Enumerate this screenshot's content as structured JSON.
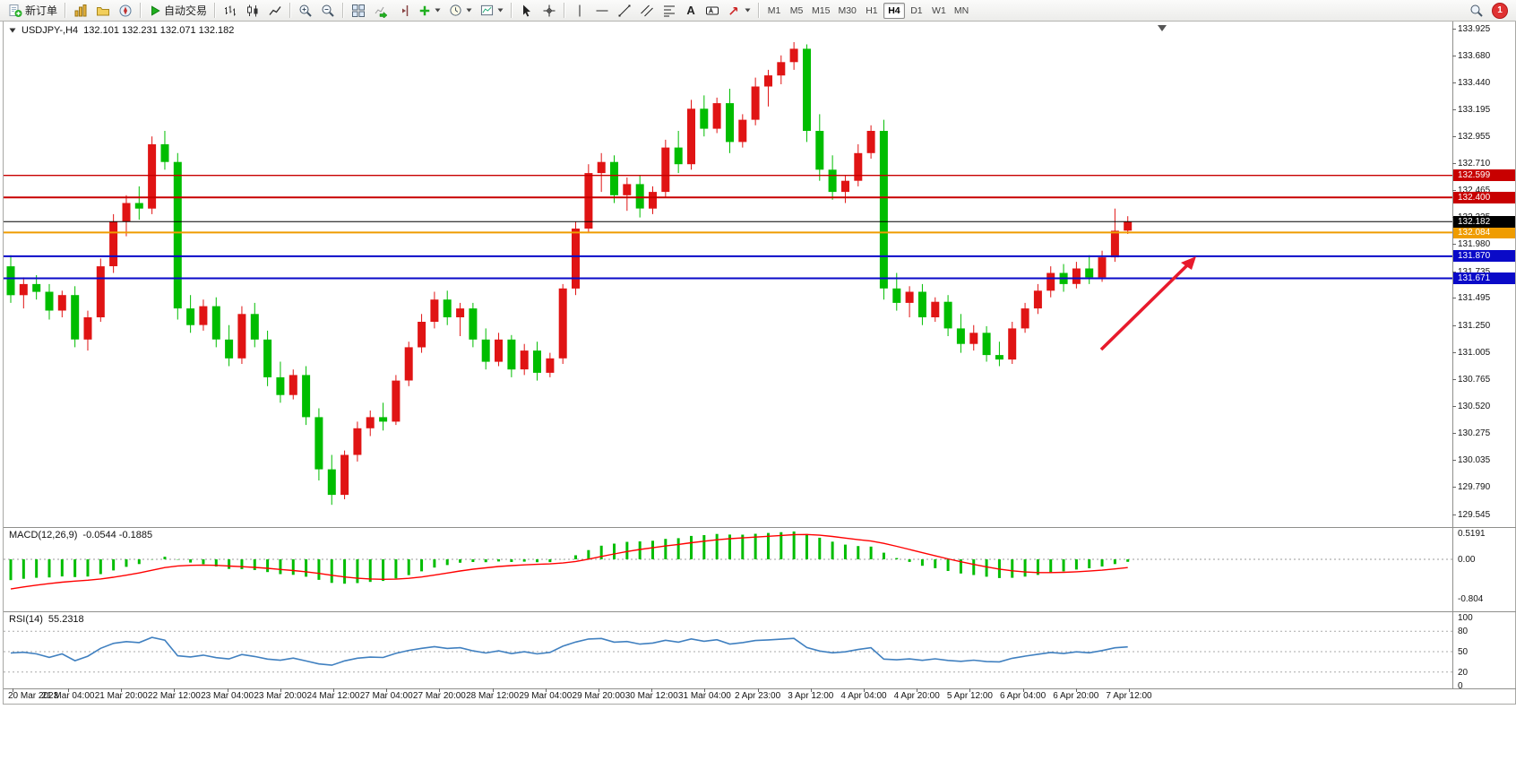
{
  "window": {
    "notification_count": "1"
  },
  "toolbar": {
    "new_order_label": "新订单",
    "auto_trading_label": "自动交易",
    "text_tool_glyph": "A",
    "timeframes": [
      "M1",
      "M5",
      "M15",
      "M30",
      "H1",
      "H4",
      "D1",
      "W1",
      "MN"
    ],
    "active_timeframe": "H4"
  },
  "chart": {
    "symbol_header": "USDJPY-,H4",
    "ohlc_header": "132.101 132.231 132.071 132.182",
    "price_axis_labels": [
      "133.925",
      "133.680",
      "133.440",
      "133.195",
      "132.955",
      "132.710",
      "132.465",
      "132.225",
      "131.980",
      "131.735",
      "131.495",
      "131.250",
      "131.005",
      "130.765",
      "130.520",
      "130.275",
      "130.035",
      "129.790",
      "129.545"
    ],
    "time_axis_labels": [
      "20 Mar 2023",
      "21 Mar 04:00",
      "21 Mar 20:00",
      "22 Mar 12:00",
      "23 Mar 04:00",
      "23 Mar 20:00",
      "24 Mar 12:00",
      "27 Mar 04:00",
      "27 Mar 20:00",
      "28 Mar 12:00",
      "29 Mar 04:00",
      "29 Mar 20:00",
      "30 Mar 12:00",
      "31 Mar 04:00",
      "2 Apr 23:00",
      "3 Apr 12:00",
      "4 Apr 04:00",
      "4 Apr 20:00",
      "5 Apr 12:00",
      "6 Apr 04:00",
      "6 Apr 20:00",
      "7 Apr 12:00"
    ],
    "macd": {
      "name": "MACD(12,26,9)",
      "values": "-0.0544 -0.1885",
      "axis_labels": [
        "0.5191",
        "0.00",
        "-0.804"
      ]
    },
    "rsi": {
      "name": "RSI(14)",
      "value": "55.2318",
      "axis_labels": [
        "100",
        "80",
        "50",
        "20",
        "0"
      ],
      "level_lines": [
        80,
        50,
        20
      ]
    }
  },
  "chart_data": {
    "type": "candlestick",
    "title": "USDJPY- H4",
    "up_color": "#e01414",
    "down_color": "#00bd00",
    "price_range": [
      129.545,
      133.925
    ],
    "x_range": [
      "20 Mar 2023",
      "7 Apr 2023 12:00"
    ],
    "current_price": {
      "label": "132.182",
      "value": 132.182,
      "color": "#000000"
    },
    "horizontal_levels": [
      {
        "label": "132.599",
        "value": 132.599,
        "color": "#c80000",
        "width": 1.3
      },
      {
        "label": "132.400",
        "value": 132.4,
        "color": "#c80000",
        "width": 2
      },
      {
        "label": "132.084",
        "value": 132.084,
        "color": "#ef9c00",
        "width": 2
      },
      {
        "label": "131.870",
        "value": 131.87,
        "color": "#0a0ac8",
        "width": 2
      },
      {
        "label": "131.671",
        "value": 131.671,
        "color": "#0a0ac8",
        "width": 2
      }
    ],
    "annotation": {
      "type": "arrow",
      "color": "#e81a2c",
      "direction": "up-right"
    },
    "candles": [
      [
        131.78,
        131.88,
        131.45,
        131.52
      ],
      [
        131.52,
        131.68,
        131.4,
        131.62
      ],
      [
        131.62,
        131.7,
        131.48,
        131.55
      ],
      [
        131.55,
        131.62,
        131.3,
        131.38
      ],
      [
        131.38,
        131.56,
        131.32,
        131.52
      ],
      [
        131.52,
        131.6,
        131.05,
        131.12
      ],
      [
        131.12,
        131.38,
        131.02,
        131.32
      ],
      [
        131.32,
        131.85,
        131.28,
        131.78
      ],
      [
        131.78,
        132.25,
        131.72,
        132.18
      ],
      [
        132.18,
        132.42,
        132.05,
        132.35
      ],
      [
        132.35,
        132.5,
        132.2,
        132.3
      ],
      [
        132.3,
        132.95,
        132.25,
        132.88
      ],
      [
        132.88,
        133.0,
        132.65,
        132.72
      ],
      [
        132.72,
        132.8,
        131.3,
        131.4
      ],
      [
        131.4,
        131.52,
        131.18,
        131.25
      ],
      [
        131.25,
        131.48,
        131.2,
        131.42
      ],
      [
        131.42,
        131.5,
        131.05,
        131.12
      ],
      [
        131.12,
        131.25,
        130.88,
        130.95
      ],
      [
        130.95,
        131.42,
        130.9,
        131.35
      ],
      [
        131.35,
        131.45,
        131.05,
        131.12
      ],
      [
        131.12,
        131.2,
        130.7,
        130.78
      ],
      [
        130.78,
        130.92,
        130.55,
        130.62
      ],
      [
        130.62,
        130.85,
        130.58,
        130.8
      ],
      [
        130.8,
        130.88,
        130.35,
        130.42
      ],
      [
        130.42,
        130.5,
        129.85,
        129.95
      ],
      [
        129.95,
        130.08,
        129.63,
        129.72
      ],
      [
        129.72,
        130.12,
        129.68,
        130.08
      ],
      [
        130.08,
        130.38,
        130.02,
        130.32
      ],
      [
        130.32,
        130.48,
        130.25,
        130.42
      ],
      [
        130.42,
        130.55,
        130.3,
        130.38
      ],
      [
        130.38,
        130.8,
        130.35,
        130.75
      ],
      [
        130.75,
        131.1,
        130.7,
        131.05
      ],
      [
        131.05,
        131.35,
        131.0,
        131.28
      ],
      [
        131.28,
        131.55,
        131.22,
        131.48
      ],
      [
        131.48,
        131.56,
        131.25,
        131.32
      ],
      [
        131.32,
        131.45,
        131.15,
        131.4
      ],
      [
        131.4,
        131.45,
        131.05,
        131.12
      ],
      [
        131.12,
        131.22,
        130.85,
        130.92
      ],
      [
        130.92,
        131.18,
        130.88,
        131.12
      ],
      [
        131.12,
        131.16,
        130.78,
        130.85
      ],
      [
        130.85,
        131.08,
        130.8,
        131.02
      ],
      [
        131.02,
        131.1,
        130.75,
        130.82
      ],
      [
        130.82,
        131.0,
        130.78,
        130.95
      ],
      [
        130.95,
        131.62,
        130.9,
        131.58
      ],
      [
        131.58,
        132.18,
        131.52,
        132.12
      ],
      [
        132.12,
        132.7,
        132.08,
        132.62
      ],
      [
        132.62,
        132.8,
        132.45,
        132.72
      ],
      [
        132.72,
        132.78,
        132.35,
        132.42
      ],
      [
        132.42,
        132.58,
        132.28,
        132.52
      ],
      [
        132.52,
        132.6,
        132.22,
        132.3
      ],
      [
        132.3,
        132.5,
        132.25,
        132.45
      ],
      [
        132.45,
        132.92,
        132.4,
        132.85
      ],
      [
        132.85,
        133.0,
        132.62,
        132.7
      ],
      [
        132.7,
        133.28,
        132.65,
        133.2
      ],
      [
        133.2,
        133.32,
        132.95,
        133.02
      ],
      [
        133.02,
        133.3,
        132.98,
        133.25
      ],
      [
        133.25,
        133.38,
        132.8,
        132.9
      ],
      [
        132.9,
        133.15,
        132.85,
        133.1
      ],
      [
        133.1,
        133.48,
        133.05,
        133.4
      ],
      [
        133.4,
        133.55,
        133.22,
        133.5
      ],
      [
        133.5,
        133.68,
        133.42,
        133.62
      ],
      [
        133.62,
        133.8,
        133.55,
        133.74
      ],
      [
        133.74,
        133.78,
        132.9,
        133.0
      ],
      [
        133.0,
        133.15,
        132.55,
        132.65
      ],
      [
        132.65,
        132.78,
        132.38,
        132.45
      ],
      [
        132.45,
        132.6,
        132.35,
        132.55
      ],
      [
        132.55,
        132.88,
        132.5,
        132.8
      ],
      [
        132.8,
        133.05,
        132.75,
        133.0
      ],
      [
        133.0,
        133.1,
        131.48,
        131.58
      ],
      [
        131.58,
        131.72,
        131.38,
        131.45
      ],
      [
        131.45,
        131.6,
        131.32,
        131.55
      ],
      [
        131.55,
        131.62,
        131.25,
        131.32
      ],
      [
        131.32,
        131.5,
        131.28,
        131.46
      ],
      [
        131.46,
        131.52,
        131.15,
        131.22
      ],
      [
        131.22,
        131.35,
        131.0,
        131.08
      ],
      [
        131.08,
        131.25,
        131.02,
        131.18
      ],
      [
        131.18,
        131.24,
        130.92,
        130.98
      ],
      [
        130.98,
        131.1,
        130.88,
        130.94
      ],
      [
        130.94,
        131.28,
        130.9,
        131.22
      ],
      [
        131.22,
        131.45,
        131.18,
        131.4
      ],
      [
        131.4,
        131.62,
        131.35,
        131.56
      ],
      [
        131.56,
        131.78,
        131.5,
        131.72
      ],
      [
        131.72,
        131.8,
        131.55,
        131.62
      ],
      [
        131.62,
        131.82,
        131.58,
        131.76
      ],
      [
        131.76,
        131.88,
        131.62,
        131.68
      ],
      [
        131.68,
        131.92,
        131.64,
        131.86
      ],
      [
        131.86,
        132.3,
        131.82,
        132.1
      ],
      [
        132.101,
        132.231,
        132.071,
        132.182
      ]
    ]
  }
}
